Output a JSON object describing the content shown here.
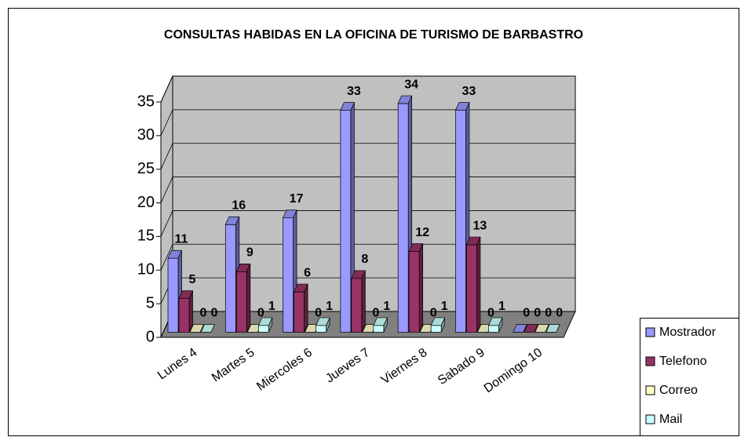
{
  "chart_data": {
    "type": "bar3d",
    "title": "CONSULTAS HABIDAS EN LA OFICINA DE TURISMO DE BARBASTRO",
    "categories": [
      "Lunes 4",
      "Martes 5",
      "Miercoles 6",
      "Jueves 7",
      "Viernes 8",
      "Sabado 9",
      "Domingo 10"
    ],
    "series": [
      {
        "name": "Mostrador",
        "color": "#9999ff",
        "values": [
          11,
          16,
          17,
          33,
          34,
          33,
          0
        ]
      },
      {
        "name": "Telefono",
        "color": "#993366",
        "values": [
          5,
          9,
          6,
          8,
          12,
          13,
          0
        ]
      },
      {
        "name": "Correo",
        "color": "#ffffcc",
        "values": [
          0,
          0,
          0,
          0,
          0,
          0,
          0
        ]
      },
      {
        "name": "Mail",
        "color": "#ccffff",
        "values": [
          0,
          1,
          1,
          1,
          1,
          1,
          0
        ]
      }
    ],
    "ylim": [
      0,
      35
    ],
    "yticks": [
      0,
      5,
      10,
      15,
      20,
      25,
      30,
      35
    ],
    "grid": true,
    "legend": "right"
  }
}
